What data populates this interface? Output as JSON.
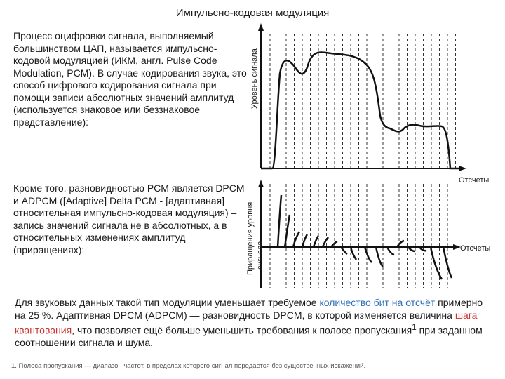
{
  "title": "Импульсно-кодовая модуляция",
  "p1": "Процесс оцифровки сигнала, выполняемый большинством ЦАП, называется импульсно-кодовой модуляцией (ИКМ, англ. Pulse Code Modulation, PCM). В случае кодирования звука, это способ цифрового кодирования сигнала при помощи записи абсолютных значений амплитуд (используется знаковое или беззнаковое представление):",
  "p2": "Кроме того, разновидностью PCM является DPCM и ADPCM ([Adaptive] Delta PCM - [адаптивная] относительная импульсно-кодовая модуляция) – запись значений сигнала не в абсолютных, а в относительных изменениях амплитуд (приращениях):",
  "p3": {
    "a": "Для звуковых данных такой тип модуляции уменьшает требуемое ",
    "link1": "количество бит на отсчёт",
    "b": " примерно на 25 %. Адаптивная DPCM (ADPCM) — разновидность DPCM, в которой изменяется величина ",
    "link2": "шага квантования",
    "c": ", что позволяет ещё больше уменьшить требования к полосе пропускания",
    "sup": "1",
    "d": " при заданном соотношении сигнала и шума."
  },
  "footnote": "1. Полоса пропускания — диапазон частот, в пределах которого сигнал передается без существенных искажений.",
  "fig1": {
    "ylabel": "Уровень сигнала",
    "xlabel": "Отсчеты"
  },
  "fig2": {
    "ylabel_line1": "Приращения уровня",
    "ylabel_line2": "сигнала",
    "xlabel": "Отсчеты"
  },
  "colors": {
    "link": "#2f6fb6",
    "accent": "#c8342f"
  }
}
